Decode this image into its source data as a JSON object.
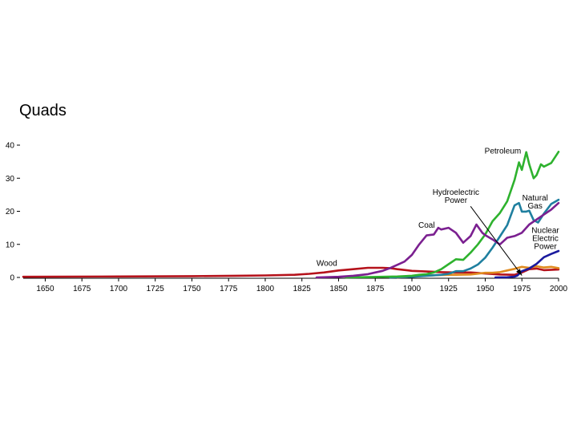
{
  "chart_data": {
    "type": "line",
    "title": "",
    "ylabel": "Quads",
    "xlabel": "",
    "xlim": [
      1635,
      2000
    ],
    "ylim": [
      0,
      40
    ],
    "x_ticks": [
      1650,
      1675,
      1700,
      1725,
      1750,
      1775,
      1800,
      1825,
      1850,
      1875,
      1900,
      1925,
      1950,
      1975,
      2000
    ],
    "y_ticks": [
      0,
      10,
      20,
      30,
      40
    ],
    "grid": false,
    "legend": "inline annotations",
    "colors": {
      "Wood": "#b5121b",
      "Coal": "#7b2090",
      "Petroleum": "#2eb22e",
      "Natural Gas": "#1f7f9f",
      "Hydroelectric Power": "#e08a1e",
      "Nuclear Electric Power": "#1a1a9e",
      "arrow": "#000000"
    },
    "series": [
      {
        "name": "Wood",
        "x": [
          1635,
          1700,
          1750,
          1780,
          1800,
          1820,
          1830,
          1840,
          1850,
          1860,
          1870,
          1880,
          1885,
          1890,
          1900,
          1910,
          1920,
          1930,
          1940,
          1950,
          1960,
          1970,
          1975,
          1980,
          1985,
          1990,
          2000
        ],
        "y": [
          0.2,
          0.3,
          0.4,
          0.5,
          0.6,
          0.8,
          1.1,
          1.5,
          2.1,
          2.5,
          2.9,
          2.9,
          2.8,
          2.5,
          2.0,
          1.8,
          1.6,
          1.5,
          1.5,
          1.2,
          0.9,
          0.8,
          1.5,
          2.5,
          2.7,
          2.2,
          2.4
        ]
      },
      {
        "name": "Coal",
        "x": [
          1835,
          1850,
          1860,
          1870,
          1875,
          1880,
          1885,
          1890,
          1895,
          1900,
          1905,
          1910,
          1915,
          1918,
          1920,
          1925,
          1930,
          1935,
          1940,
          1944,
          1948,
          1950,
          1955,
          1960,
          1965,
          1970,
          1975,
          1980,
          1985,
          1990,
          1995,
          2000
        ],
        "y": [
          0,
          0.2,
          0.5,
          1.0,
          1.5,
          2.0,
          2.8,
          3.8,
          4.8,
          6.8,
          10,
          12.7,
          13.0,
          15.0,
          14.5,
          15.0,
          13.5,
          10.5,
          12.5,
          16.0,
          13.5,
          12.8,
          11.5,
          10.0,
          12.0,
          12.5,
          13.5,
          16.0,
          17.5,
          19.0,
          20.5,
          22.5
        ]
      },
      {
        "name": "Petroleum",
        "x": [
          1855,
          1870,
          1880,
          1890,
          1900,
          1905,
          1910,
          1915,
          1920,
          1925,
          1930,
          1935,
          1940,
          1945,
          1950,
          1955,
          1960,
          1965,
          1970,
          1973,
          1975,
          1978,
          1980,
          1983,
          1985,
          1988,
          1990,
          1995,
          2000
        ],
        "y": [
          0,
          0.1,
          0.2,
          0.3,
          0.5,
          0.8,
          1.0,
          1.5,
          2.5,
          4.0,
          5.5,
          5.3,
          7.5,
          10.0,
          13.0,
          17.0,
          19.5,
          23.0,
          29.5,
          34.8,
          32.5,
          37.9,
          34.2,
          30.0,
          30.9,
          34.2,
          33.5,
          34.6,
          38.0
        ]
      },
      {
        "name": "Natural Gas",
        "x": [
          1885,
          1900,
          1910,
          1920,
          1925,
          1930,
          1935,
          1940,
          1945,
          1950,
          1955,
          1960,
          1965,
          1970,
          1973,
          1975,
          1978,
          1980,
          1983,
          1986,
          1990,
          1995,
          2000
        ],
        "y": [
          0,
          0.2,
          0.5,
          0.8,
          1.1,
          1.9,
          1.9,
          2.7,
          3.9,
          6.0,
          9.0,
          12.4,
          15.8,
          21.8,
          22.5,
          19.9,
          19.9,
          20.2,
          17.3,
          16.6,
          19.3,
          22.2,
          23.5
        ]
      },
      {
        "name": "Hydroelectric Power",
        "x": [
          1890,
          1900,
          1910,
          1920,
          1930,
          1940,
          1950,
          1955,
          1960,
          1965,
          1970,
          1975,
          1980,
          1985,
          1990,
          1995,
          2000
        ],
        "y": [
          0,
          0.25,
          0.55,
          0.75,
          0.8,
          0.9,
          1.4,
          1.4,
          1.6,
          2.1,
          2.6,
          3.2,
          2.9,
          3.4,
          3.0,
          3.2,
          2.8
        ]
      },
      {
        "name": "Nuclear Electric Power",
        "x": [
          1957,
          1965,
          1970,
          1972,
          1975,
          1980,
          1985,
          1990,
          1995,
          2000
        ],
        "y": [
          0,
          0.04,
          0.24,
          0.6,
          1.9,
          2.7,
          4.1,
          6.1,
          7.1,
          8.0
        ]
      }
    ],
    "annotations": [
      {
        "text": [
          "Petroleum"
        ],
        "x": 1962,
        "y": 37.4,
        "anchor": "middle"
      },
      {
        "text": [
          "Hydroelectric",
          "Power"
        ],
        "x": 1930,
        "y": 25.0,
        "anchor": "middle"
      },
      {
        "text": [
          "Natural",
          "Gas"
        ],
        "x": 1984,
        "y": 23.3,
        "anchor": "middle"
      },
      {
        "text": [
          "Coal"
        ],
        "x": 1910,
        "y": 15.0,
        "anchor": "middle"
      },
      {
        "text": [
          "Nuclear",
          "Electric",
          "Power"
        ],
        "x": 1991,
        "y": 13.5,
        "anchor": "middle"
      },
      {
        "text": [
          "Wood"
        ],
        "x": 1842,
        "y": 3.5,
        "anchor": "middle"
      }
    ],
    "arrow": {
      "from": [
        1940,
        21.5
      ],
      "to": [
        1975,
        0.6
      ]
    }
  }
}
